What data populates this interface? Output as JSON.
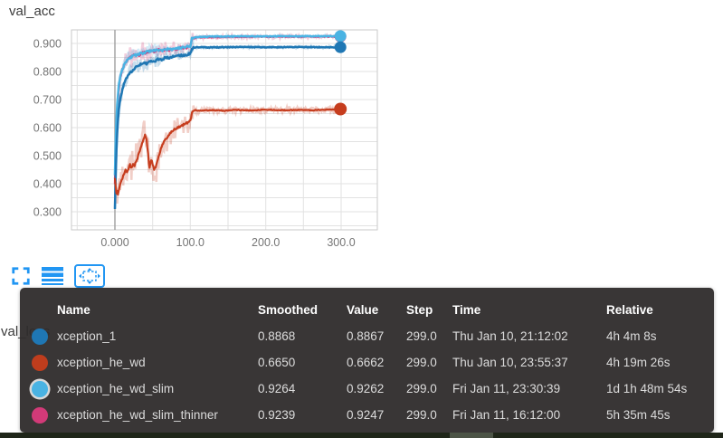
{
  "chart": {
    "title": "val_acc"
  },
  "next_chart": {
    "title": "val_loss"
  },
  "toolbar": {
    "accent": "#2196f3",
    "buttons": [
      {
        "id": "expand-chart",
        "icon": "fullscreen-expand-icon",
        "active": false
      },
      {
        "id": "toggle-log-scale",
        "icon": "log-scale-lines-icon",
        "active": false
      },
      {
        "id": "fit-domain-to-data",
        "icon": "fit-domain-icon",
        "active": true
      }
    ]
  },
  "tooltip": {
    "headers": [
      "Name",
      "Smoothed",
      "Value",
      "Step",
      "Time",
      "Relative"
    ],
    "rows": [
      {
        "name": "xception_1",
        "color": "#1f77b4",
        "ring": false,
        "smoothed": "0.8868",
        "value": "0.8867",
        "step": "299.0",
        "time": "Thu Jan 10, 21:12:02",
        "relative": "4h 4m 8s"
      },
      {
        "name": "xception_he_wd",
        "color": "#bf3d1d",
        "ring": false,
        "smoothed": "0.6650",
        "value": "0.6662",
        "step": "299.0",
        "time": "Thu Jan 10, 23:55:37",
        "relative": "4h 19m 26s"
      },
      {
        "name": "xception_he_wd_slim",
        "color": "#4ab3e3",
        "ring": true,
        "smoothed": "0.9264",
        "value": "0.9262",
        "step": "299.0",
        "time": "Fri Jan 11, 23:30:39",
        "relative": "1d 1h 48m 54s"
      },
      {
        "name": "xception_he_wd_slim_thinner",
        "color": "#d23a78",
        "ring": false,
        "smoothed": "0.9239",
        "value": "0.9247",
        "step": "299.0",
        "time": "Fri Jan 11, 16:12:00",
        "relative": "5h 35m 45s"
      }
    ]
  },
  "colors": {
    "grid": "#e2e2e2",
    "plot_border": "#c9c9c9",
    "zero_line": "#9e9e9e",
    "tick_label": "#757575",
    "tooltip_bg": "rgba(46,43,43,0.95)",
    "icon_accent": "#2196f3"
  },
  "chart_data": {
    "type": "line",
    "title": "val_acc",
    "xlabel": "",
    "ylabel": "",
    "grid": true,
    "xlim": [
      -58,
      348
    ],
    "ylim": [
      0.236,
      0.948
    ],
    "x_ticks": {
      "values": [
        0,
        100,
        200,
        300
      ],
      "labels": [
        "0.000",
        "100.0",
        "200.0",
        "300.0"
      ]
    },
    "y_ticks": {
      "values": [
        0.3,
        0.4,
        0.5,
        0.6,
        0.7,
        0.8,
        0.9
      ],
      "labels": [
        "0.300",
        "0.400",
        "0.500",
        "0.600",
        "0.700",
        "0.800",
        "0.900"
      ]
    },
    "series": [
      {
        "name": "xception_he_wd_slim_thinner",
        "color": "#d23a78",
        "z": 1,
        "width": 2.2,
        "raw_noise": 0.018,
        "dot_r": 6.5,
        "final": {
          "step": 299,
          "value": 0.9247,
          "smoothed": 0.9239
        },
        "points": [
          [
            0,
            0.4
          ],
          [
            1,
            0.53
          ],
          [
            2,
            0.61
          ],
          [
            3,
            0.665
          ],
          [
            5,
            0.735
          ],
          [
            7,
            0.775
          ],
          [
            10,
            0.808
          ],
          [
            14,
            0.83
          ],
          [
            18,
            0.846
          ],
          [
            22,
            0.855
          ],
          [
            27,
            0.86
          ],
          [
            32,
            0.858
          ],
          [
            37,
            0.868
          ],
          [
            42,
            0.865
          ],
          [
            47,
            0.874
          ],
          [
            52,
            0.871
          ],
          [
            57,
            0.878
          ],
          [
            62,
            0.872
          ],
          [
            67,
            0.88
          ],
          [
            72,
            0.877
          ],
          [
            77,
            0.882
          ],
          [
            82,
            0.879
          ],
          [
            87,
            0.886
          ],
          [
            92,
            0.883
          ],
          [
            97,
            0.887
          ],
          [
            100,
            0.889
          ],
          [
            102,
            0.914
          ],
          [
            105,
            0.919
          ],
          [
            110,
            0.921
          ],
          [
            130,
            0.9225
          ],
          [
            160,
            0.9235
          ],
          [
            200,
            0.924
          ],
          [
            240,
            0.9243
          ],
          [
            270,
            0.9245
          ],
          [
            299,
            0.9247
          ]
        ]
      },
      {
        "name": "xception_he_wd_slim",
        "color": "#4ab3e3",
        "z": 2,
        "width": 2.5,
        "raw_noise": 0.013,
        "dot_r": 6.5,
        "final": {
          "step": 299,
          "value": 0.9262,
          "smoothed": 0.9264
        },
        "points": [
          [
            0,
            0.43
          ],
          [
            1,
            0.55
          ],
          [
            2,
            0.63
          ],
          [
            3,
            0.68
          ],
          [
            5,
            0.745
          ],
          [
            7,
            0.78
          ],
          [
            10,
            0.81
          ],
          [
            14,
            0.832
          ],
          [
            18,
            0.845
          ],
          [
            22,
            0.852
          ],
          [
            27,
            0.858
          ],
          [
            32,
            0.862
          ],
          [
            37,
            0.866
          ],
          [
            42,
            0.869
          ],
          [
            47,
            0.872
          ],
          [
            52,
            0.874
          ],
          [
            57,
            0.876
          ],
          [
            62,
            0.874
          ],
          [
            67,
            0.879
          ],
          [
            72,
            0.881
          ],
          [
            77,
            0.879
          ],
          [
            82,
            0.883
          ],
          [
            87,
            0.885
          ],
          [
            92,
            0.887
          ],
          [
            97,
            0.889
          ],
          [
            100,
            0.891
          ],
          [
            102,
            0.917
          ],
          [
            105,
            0.921
          ],
          [
            110,
            0.9235
          ],
          [
            130,
            0.9245
          ],
          [
            160,
            0.925
          ],
          [
            200,
            0.9255
          ],
          [
            240,
            0.926
          ],
          [
            270,
            0.926
          ],
          [
            299,
            0.9262
          ]
        ]
      },
      {
        "name": "xception_1",
        "color": "#1f77b4",
        "z": 3,
        "width": 2.5,
        "raw_noise": 0.012,
        "dot_r": 6.5,
        "final": {
          "step": 299,
          "value": 0.8867,
          "smoothed": 0.8868
        },
        "points": [
          [
            0,
            0.31
          ],
          [
            1,
            0.42
          ],
          [
            2,
            0.52
          ],
          [
            3,
            0.58
          ],
          [
            5,
            0.66
          ],
          [
            7,
            0.7
          ],
          [
            10,
            0.74
          ],
          [
            14,
            0.77
          ],
          [
            18,
            0.79
          ],
          [
            22,
            0.8
          ],
          [
            27,
            0.815
          ],
          [
            32,
            0.822
          ],
          [
            37,
            0.83
          ],
          [
            42,
            0.828
          ],
          [
            47,
            0.838
          ],
          [
            52,
            0.835
          ],
          [
            57,
            0.845
          ],
          [
            62,
            0.843
          ],
          [
            67,
            0.85
          ],
          [
            72,
            0.848
          ],
          [
            77,
            0.855
          ],
          [
            82,
            0.853
          ],
          [
            87,
            0.858
          ],
          [
            92,
            0.856
          ],
          [
            97,
            0.862
          ],
          [
            100,
            0.864
          ],
          [
            102,
            0.882
          ],
          [
            105,
            0.885
          ],
          [
            110,
            0.8865
          ],
          [
            130,
            0.886
          ],
          [
            160,
            0.887
          ],
          [
            200,
            0.8865
          ],
          [
            240,
            0.887
          ],
          [
            270,
            0.8868
          ],
          [
            299,
            0.8867
          ]
        ]
      },
      {
        "name": "xception_he_wd",
        "color": "#c63d1e",
        "z": 4,
        "width": 2.2,
        "raw_noise": 0.034,
        "dot_r": 7,
        "final": {
          "step": 299,
          "value": 0.6662,
          "smoothed": 0.665
        },
        "points": [
          [
            0,
            0.42
          ],
          [
            1,
            0.39
          ],
          [
            2,
            0.365
          ],
          [
            3,
            0.375
          ],
          [
            4,
            0.36
          ],
          [
            5,
            0.375
          ],
          [
            6,
            0.39
          ],
          [
            8,
            0.405
          ],
          [
            10,
            0.42
          ],
          [
            12,
            0.435
          ],
          [
            14,
            0.448
          ],
          [
            16,
            0.44
          ],
          [
            18,
            0.452
          ],
          [
            20,
            0.468
          ],
          [
            22,
            0.455
          ],
          [
            24,
            0.47
          ],
          [
            26,
            0.465
          ],
          [
            28,
            0.478
          ],
          [
            30,
            0.49
          ],
          [
            32,
            0.51
          ],
          [
            34,
            0.525
          ],
          [
            36,
            0.545
          ],
          [
            38,
            0.56
          ],
          [
            40,
            0.578
          ],
          [
            42,
            0.555
          ],
          [
            44,
            0.51
          ],
          [
            45,
            0.475
          ],
          [
            46,
            0.46
          ],
          [
            48,
            0.487
          ],
          [
            50,
            0.47
          ],
          [
            52,
            0.452
          ],
          [
            54,
            0.458
          ],
          [
            56,
            0.475
          ],
          [
            58,
            0.495
          ],
          [
            60,
            0.515
          ],
          [
            62,
            0.53
          ],
          [
            64,
            0.545
          ],
          [
            67,
            0.558
          ],
          [
            70,
            0.568
          ],
          [
            73,
            0.578
          ],
          [
            76,
            0.588
          ],
          [
            80,
            0.596
          ],
          [
            84,
            0.601
          ],
          [
            88,
            0.606
          ],
          [
            92,
            0.612
          ],
          [
            96,
            0.618
          ],
          [
            100,
            0.624
          ],
          [
            102,
            0.652
          ],
          [
            104,
            0.66
          ],
          [
            107,
            0.662
          ],
          [
            115,
            0.661
          ],
          [
            130,
            0.662
          ],
          [
            145,
            0.66
          ],
          [
            160,
            0.663
          ],
          [
            180,
            0.661
          ],
          [
            200,
            0.664
          ],
          [
            220,
            0.662
          ],
          [
            240,
            0.663
          ],
          [
            260,
            0.662
          ],
          [
            280,
            0.664
          ],
          [
            299,
            0.6662
          ]
        ]
      }
    ]
  }
}
